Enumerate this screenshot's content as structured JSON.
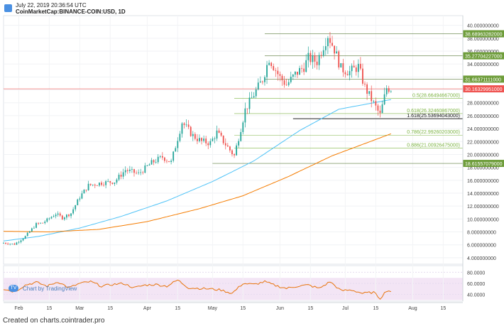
{
  "header": {
    "timestamp": "July 22, 2019 20:36:54 UTC",
    "symbol": "CoinMarketCap:BINANCE-COIN:USD, 1D"
  },
  "credit": "Created on charts.cointrader.pro",
  "watermark": {
    "label": "Chart by TradingView"
  },
  "colors": {
    "up": "#26a69a",
    "down": "#ef5350",
    "ema_fast": "#4fc3f7",
    "ema_slow": "#f57c00",
    "fib": "#7cb342",
    "rsi": "#e8740c",
    "rsi_band": "#f3e5f5"
  },
  "chart_data": [
    {
      "type": "candlestick",
      "x": {
        "start": "2019-01-25",
        "end": "2019-08-24",
        "ticks": [
          {
            "date": "2019-02-01",
            "label": "Feb"
          },
          {
            "date": "2019-02-15",
            "label": "15"
          },
          {
            "date": "2019-03-01",
            "label": "Mar"
          },
          {
            "date": "2019-03-15",
            "label": "15"
          },
          {
            "date": "2019-04-01",
            "label": "Apr"
          },
          {
            "date": "2019-04-15",
            "label": "15"
          },
          {
            "date": "2019-05-01",
            "label": "May"
          },
          {
            "date": "2019-05-15",
            "label": "15"
          },
          {
            "date": "2019-06-01",
            "label": "Jun"
          },
          {
            "date": "2019-06-15",
            "label": "15"
          },
          {
            "date": "2019-07-01",
            "label": "Jul"
          },
          {
            "date": "2019-07-15",
            "label": "15"
          },
          {
            "date": "2019-08-01",
            "label": "Aug"
          },
          {
            "date": "2019-08-15",
            "label": "15"
          }
        ]
      },
      "y": {
        "min": 3.0,
        "max": 41.5,
        "ticks": [
          "4.000000000",
          "6.000000000",
          "8.000000000",
          "10.000000000",
          "12.000000000",
          "14.000000000",
          "16.000000000",
          "18.000000000",
          "20.000000000",
          "22.000000000",
          "24.000000000",
          "26.000000000",
          "28.000000000",
          "30.000000000",
          "32.000000000",
          "34.000000000",
          "36.000000000",
          "38.000000000",
          "40.000000000"
        ]
      },
      "close_anchors": [
        [
          "2019-01-25",
          6.3
        ],
        [
          "2019-01-30",
          6.1
        ],
        [
          "2019-02-04",
          7.3
        ],
        [
          "2019-02-09",
          9.2
        ],
        [
          "2019-02-12",
          9.4
        ],
        [
          "2019-02-18",
          10.8
        ],
        [
          "2019-02-21",
          10.2
        ],
        [
          "2019-02-25",
          10.9
        ],
        [
          "2019-03-01",
          13.4
        ],
        [
          "2019-03-05",
          15.2
        ],
        [
          "2019-03-11",
          15.6
        ],
        [
          "2019-03-17",
          15.8
        ],
        [
          "2019-03-22",
          17.6
        ],
        [
          "2019-03-28",
          17.0
        ],
        [
          "2019-04-03",
          18.7
        ],
        [
          "2019-04-08",
          19.6
        ],
        [
          "2019-04-12",
          18.8
        ],
        [
          "2019-04-17",
          25.0
        ],
        [
          "2019-04-22",
          22.9
        ],
        [
          "2019-04-26",
          22.0
        ],
        [
          "2019-04-30",
          21.8
        ],
        [
          "2019-05-03",
          23.4
        ],
        [
          "2019-05-08",
          21.1
        ],
        [
          "2019-05-11",
          19.8
        ],
        [
          "2019-05-16",
          26.9
        ],
        [
          "2019-05-20",
          29.3
        ],
        [
          "2019-05-24",
          31.6
        ],
        [
          "2019-05-27",
          34.9
        ],
        [
          "2019-06-01",
          31.9
        ],
        [
          "2019-06-04",
          30.8
        ],
        [
          "2019-06-08",
          32.4
        ],
        [
          "2019-06-12",
          33.6
        ],
        [
          "2019-06-14",
          34.9
        ],
        [
          "2019-06-18",
          34.4
        ],
        [
          "2019-06-21",
          36.9
        ],
        [
          "2019-06-23",
          38.5
        ],
        [
          "2019-06-26",
          36.3
        ],
        [
          "2019-06-29",
          33.3
        ],
        [
          "2019-07-03",
          32.8
        ],
        [
          "2019-07-07",
          33.6
        ],
        [
          "2019-07-10",
          30.4
        ],
        [
          "2019-07-14",
          27.9
        ],
        [
          "2019-07-17",
          26.1
        ],
        [
          "2019-07-20",
          30.3
        ],
        [
          "2019-07-22",
          30.16
        ]
      ],
      "series": [
        {
          "kind": "ema",
          "anchors": [
            [
              "2019-01-25",
              6.6
            ],
            [
              "2019-02-10",
              7.3
            ],
            [
              "2019-03-01",
              8.6
            ],
            [
              "2019-03-20",
              10.4
            ],
            [
              "2019-04-10",
              12.8
            ],
            [
              "2019-05-01",
              15.8
            ],
            [
              "2019-05-20",
              19.0
            ],
            [
              "2019-06-10",
              23.7
            ],
            [
              "2019-06-28",
              27.0
            ],
            [
              "2019-07-22",
              28.5
            ]
          ]
        },
        {
          "kind": "ema",
          "anchors": [
            [
              "2019-01-25",
              8.1
            ],
            [
              "2019-02-15",
              8.0
            ],
            [
              "2019-03-10",
              8.4
            ],
            [
              "2019-04-01",
              9.6
            ],
            [
              "2019-04-25",
              11.6
            ],
            [
              "2019-05-15",
              13.6
            ],
            [
              "2019-06-05",
              16.6
            ],
            [
              "2019-06-25",
              19.8
            ],
            [
              "2019-07-22",
              23.2
            ]
          ]
        }
      ],
      "levels": [
        {
          "value": 38.68963282,
          "label": "38.68963282000",
          "fib": false
        },
        {
          "value": 35.27704227,
          "label": "35.27704227000",
          "fib": false
        },
        {
          "value": 31.66371111,
          "label": "31.66371111000",
          "fib": false
        },
        {
          "value": 30.16329951,
          "label": "30.16329951000",
          "current": true
        },
        {
          "value": 28.66494667,
          "label": "0.5(28.66494667000)",
          "fib": true
        },
        {
          "value": 26.32460867,
          "label": "0.618(26.32460867000)",
          "fib": true
        },
        {
          "value": 25.53694043,
          "label": "1.618(25.53694043000)",
          "fib": true,
          "dark": true
        },
        {
          "value": 22.99260203,
          "label": "0.786(22.99260203000)",
          "fib": true
        },
        {
          "value": 21.00926475,
          "label": "0.886(21.00926475000)",
          "fib": true
        },
        {
          "value": 18.61557079,
          "label": "18.61557079000",
          "fib": false
        }
      ]
    },
    {
      "type": "line",
      "name": "RSI",
      "y": {
        "min": 28,
        "max": 92,
        "ticks": [
          "40.0000",
          "60.0000",
          "80.0000"
        ],
        "band": [
          30,
          70
        ]
      },
      "anchors": [
        [
          "2019-01-25",
          50
        ],
        [
          "2019-01-30",
          45
        ],
        [
          "2019-02-04",
          57
        ],
        [
          "2019-02-09",
          62
        ],
        [
          "2019-02-14",
          55
        ],
        [
          "2019-02-19",
          63
        ],
        [
          "2019-02-24",
          52
        ],
        [
          "2019-03-01",
          60
        ],
        [
          "2019-03-06",
          63
        ],
        [
          "2019-03-11",
          55
        ],
        [
          "2019-03-16",
          58
        ],
        [
          "2019-03-21",
          60
        ],
        [
          "2019-03-26",
          52
        ],
        [
          "2019-03-31",
          57
        ],
        [
          "2019-04-05",
          58
        ],
        [
          "2019-04-10",
          55
        ],
        [
          "2019-04-15",
          66
        ],
        [
          "2019-04-20",
          52
        ],
        [
          "2019-04-25",
          51
        ],
        [
          "2019-04-30",
          50
        ],
        [
          "2019-05-05",
          48
        ],
        [
          "2019-05-10",
          42
        ],
        [
          "2019-05-15",
          60
        ],
        [
          "2019-05-20",
          58
        ],
        [
          "2019-05-25",
          63
        ],
        [
          "2019-05-30",
          56
        ],
        [
          "2019-06-04",
          51
        ],
        [
          "2019-06-09",
          55
        ],
        [
          "2019-06-14",
          57
        ],
        [
          "2019-06-19",
          51
        ],
        [
          "2019-06-24",
          63
        ],
        [
          "2019-06-29",
          47
        ],
        [
          "2019-07-04",
          48
        ],
        [
          "2019-07-09",
          42
        ],
        [
          "2019-07-14",
          44
        ],
        [
          "2019-07-17",
          33
        ],
        [
          "2019-07-20",
          47
        ],
        [
          "2019-07-22",
          46
        ]
      ]
    }
  ]
}
